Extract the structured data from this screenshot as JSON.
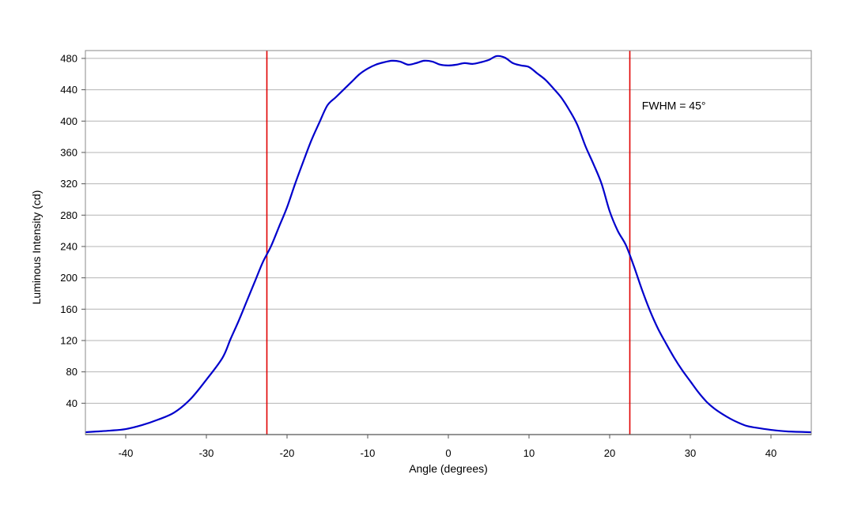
{
  "chart_data": {
    "type": "line",
    "title": "",
    "xlabel": "Angle (degrees)",
    "ylabel": "Luminous Intensity (cd)",
    "xlim": [
      -45,
      45
    ],
    "ylim": [
      0,
      490
    ],
    "x_ticks": [
      -40,
      -30,
      -20,
      -10,
      0,
      10,
      20,
      30,
      40
    ],
    "y_ticks": [
      40,
      80,
      120,
      160,
      200,
      240,
      280,
      320,
      360,
      400,
      440,
      480
    ],
    "grid": "horizontal",
    "series": [
      {
        "color": "#0000cc",
        "points": [
          [
            -45,
            3
          ],
          [
            -42,
            5
          ],
          [
            -40,
            7
          ],
          [
            -38,
            12
          ],
          [
            -36,
            19
          ],
          [
            -34,
            28
          ],
          [
            -32,
            45
          ],
          [
            -30,
            70
          ],
          [
            -28,
            98
          ],
          [
            -27,
            122
          ],
          [
            -26,
            145
          ],
          [
            -25,
            170
          ],
          [
            -24,
            195
          ],
          [
            -23,
            220
          ],
          [
            -22,
            240
          ],
          [
            -21,
            265
          ],
          [
            -20,
            290
          ],
          [
            -19,
            320
          ],
          [
            -18,
            348
          ],
          [
            -17,
            375
          ],
          [
            -16,
            398
          ],
          [
            -15,
            420
          ],
          [
            -14,
            430
          ],
          [
            -13,
            440
          ],
          [
            -12,
            450
          ],
          [
            -11,
            460
          ],
          [
            -10,
            467
          ],
          [
            -9,
            472
          ],
          [
            -8,
            475
          ],
          [
            -7,
            477
          ],
          [
            -6,
            476
          ],
          [
            -5,
            472
          ],
          [
            -4,
            474
          ],
          [
            -3,
            477
          ],
          [
            -2,
            476
          ],
          [
            -1,
            472
          ],
          [
            0,
            471
          ],
          [
            1,
            472
          ],
          [
            2,
            474
          ],
          [
            3,
            473
          ],
          [
            4,
            475
          ],
          [
            5,
            478
          ],
          [
            6,
            483
          ],
          [
            7,
            481
          ],
          [
            8,
            474
          ],
          [
            9,
            471
          ],
          [
            10,
            469
          ],
          [
            11,
            461
          ],
          [
            12,
            453
          ],
          [
            13,
            442
          ],
          [
            14,
            430
          ],
          [
            15,
            414
          ],
          [
            16,
            395
          ],
          [
            17,
            368
          ],
          [
            18,
            345
          ],
          [
            19,
            320
          ],
          [
            20,
            285
          ],
          [
            21,
            260
          ],
          [
            22,
            242
          ],
          [
            23,
            215
          ],
          [
            24,
            185
          ],
          [
            25,
            158
          ],
          [
            26,
            135
          ],
          [
            27,
            116
          ],
          [
            28,
            98
          ],
          [
            29,
            82
          ],
          [
            30,
            68
          ],
          [
            31,
            54
          ],
          [
            32,
            42
          ],
          [
            33,
            33
          ],
          [
            34,
            26
          ],
          [
            35,
            20
          ],
          [
            36,
            15
          ],
          [
            37,
            11
          ],
          [
            38,
            9
          ],
          [
            40,
            6
          ],
          [
            42,
            4
          ],
          [
            45,
            3
          ]
        ]
      }
    ],
    "vertical_lines": [
      {
        "x": -22.5,
        "color": "#e00000"
      },
      {
        "x": 22.5,
        "color": "#e00000"
      }
    ],
    "annotations": [
      {
        "text": "FWHM = 45°",
        "x": 24,
        "y": 420
      }
    ],
    "gridline_color": "#b4b4b4",
    "axis_color": "#888888"
  }
}
